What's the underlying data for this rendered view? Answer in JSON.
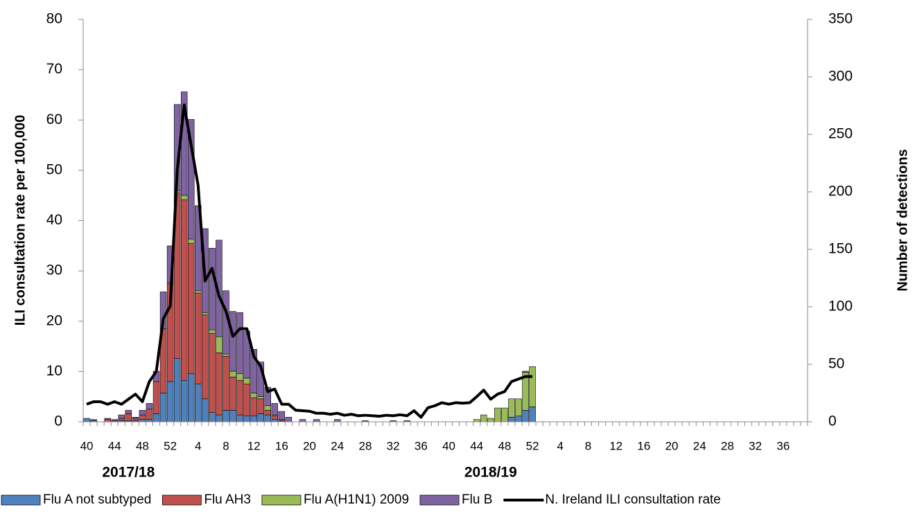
{
  "chart_data": {
    "type": "bar",
    "stacked": true,
    "ylabel": "ILI consultation rate per 100,000",
    "y2label": "Number of detections",
    "ylim": [
      0,
      80
    ],
    "yticks": [
      0,
      10,
      20,
      30,
      40,
      50,
      60,
      70,
      80
    ],
    "y2lim": [
      0,
      350
    ],
    "y2ticks": [
      0,
      50,
      100,
      150,
      200,
      250,
      300,
      350
    ],
    "annotations": [
      "2017/18",
      "2018/19"
    ],
    "legend": "bottom",
    "categories": [
      "40",
      null,
      null,
      null,
      "44",
      null,
      null,
      null,
      "48",
      null,
      null,
      null,
      "52",
      null,
      null,
      null,
      "4",
      null,
      null,
      null,
      "8",
      null,
      null,
      null,
      "12",
      null,
      null,
      null,
      "16",
      null,
      null,
      null,
      "20",
      null,
      null,
      null,
      "24",
      null,
      null,
      null,
      "28",
      null,
      null,
      null,
      "32",
      null,
      null,
      null,
      "36",
      null,
      null,
      null,
      "40",
      null,
      null,
      null,
      "44",
      null,
      null,
      null,
      "48",
      null,
      null,
      null,
      "52",
      null,
      null,
      null,
      "4",
      null,
      null,
      null,
      "8",
      null,
      null,
      null,
      "12",
      null,
      null,
      null,
      "16",
      null,
      null,
      null,
      "20",
      null,
      null,
      null,
      "24",
      null,
      null,
      null,
      "28",
      null,
      null,
      null,
      "32",
      null,
      null,
      null,
      "36",
      null,
      null,
      null
    ],
    "series": [
      {
        "name": "Flu A not subtyped",
        "color": "#4f81bd",
        "type": "bar",
        "axis": "y2",
        "values": [
          3,
          1,
          0,
          0,
          0,
          1,
          1,
          1,
          2,
          2,
          7,
          25,
          35,
          55,
          36,
          42,
          33,
          20,
          8,
          6,
          10,
          10,
          6,
          5,
          5,
          7,
          6,
          2,
          1,
          0,
          0,
          0,
          0,
          0,
          0,
          0,
          0,
          0,
          0,
          0,
          0,
          0,
          0,
          0,
          0,
          0,
          0,
          0,
          0,
          0,
          0,
          0,
          0,
          0,
          0,
          0,
          0,
          0,
          0,
          0,
          0,
          4,
          5,
          10,
          13,
          null,
          null,
          null,
          null,
          null,
          null,
          null,
          null,
          null,
          null,
          null,
          null,
          null,
          null,
          null,
          null,
          null,
          null,
          null,
          null,
          null,
          null,
          null,
          null,
          null,
          null,
          null,
          null,
          null,
          null,
          null,
          null,
          null,
          null,
          null,
          null,
          null,
          null,
          null
        ]
      },
      {
        "name": "Flu AH3",
        "color": "#c0504d",
        "type": "bar",
        "axis": "y2",
        "values": [
          0,
          0,
          0,
          2,
          1,
          2,
          6,
          2,
          4,
          9,
          28,
          56,
          85,
          144,
          157,
          113,
          79,
          73,
          69,
          54,
          47,
          29,
          30,
          28,
          16,
          13,
          4,
          3,
          1,
          0,
          0,
          0,
          0,
          0,
          0,
          0,
          0,
          0,
          0,
          0,
          0,
          0,
          0,
          0,
          0,
          0,
          0,
          0,
          0,
          0,
          0,
          0,
          0,
          0,
          0,
          0,
          0,
          0,
          0,
          0,
          0,
          0,
          0,
          0,
          0,
          null,
          null,
          null,
          null,
          null,
          null,
          null,
          null,
          null,
          null,
          null,
          null,
          null,
          null,
          null,
          null,
          null,
          null,
          null,
          null,
          null,
          null,
          null,
          null,
          null,
          null,
          null,
          null,
          null,
          null,
          null,
          null,
          null,
          null,
          null,
          null,
          null,
          null,
          null
        ]
      },
      {
        "name": "Flu A(H1N1) 2009",
        "color": "#9bbb59",
        "type": "bar",
        "axis": "y2",
        "values": [
          0,
          0,
          0,
          0,
          0,
          0,
          0,
          0,
          0,
          0,
          0,
          0,
          1,
          2,
          4,
          4,
          2,
          2,
          3,
          14,
          2,
          5,
          6,
          5,
          4,
          2,
          4,
          1,
          0,
          0,
          0,
          0,
          0,
          0,
          0,
          0,
          0,
          0,
          0,
          0,
          0,
          0,
          0,
          0,
          0,
          0,
          0,
          0,
          0,
          0,
          0,
          0,
          0,
          0,
          0,
          0,
          2,
          6,
          3,
          12,
          12,
          16,
          15,
          33,
          35,
          null,
          null,
          null,
          null,
          null,
          null,
          null,
          null,
          null,
          null,
          null,
          null,
          null,
          null,
          null,
          null,
          null,
          null,
          null,
          null,
          null,
          null,
          null,
          null,
          null,
          null,
          null,
          null,
          null,
          null,
          null,
          null,
          null,
          null,
          null,
          null,
          null,
          null,
          null
        ]
      },
      {
        "name": "Flu B",
        "color": "#8064a2",
        "type": "bar",
        "axis": "y2",
        "values": [
          0,
          1,
          0,
          1,
          1,
          3,
          3,
          1,
          4,
          5,
          9,
          32,
          32,
          75,
          90,
          104,
          74,
          73,
          71,
          84,
          55,
          52,
          53,
          41,
          38,
          30,
          16,
          10,
          7,
          4,
          0,
          2,
          0,
          2,
          0,
          0,
          2,
          0,
          0,
          0,
          1,
          0,
          0,
          0,
          1,
          0,
          1,
          0,
          0,
          0,
          0,
          0,
          0,
          0,
          0,
          0,
          0,
          0,
          0,
          0,
          0,
          0,
          0,
          1,
          0,
          null,
          null,
          null,
          null,
          null,
          null,
          null,
          null,
          null,
          null,
          null,
          null,
          null,
          null,
          null,
          null,
          null,
          null,
          null,
          null,
          null,
          null,
          null,
          null,
          null,
          null,
          null,
          null,
          null,
          null,
          null,
          null,
          null,
          null,
          null,
          null,
          null,
          null,
          null
        ]
      },
      {
        "name": "N. Ireland ILI consultation rate",
        "color": "#000000",
        "type": "line",
        "axis": "y",
        "values": [
          3.5,
          4,
          4,
          3.5,
          4,
          3.5,
          4.5,
          5.5,
          4,
          8,
          10,
          20.5,
          23,
          50,
          63,
          55,
          47,
          28,
          30.5,
          25,
          22,
          17,
          18.5,
          18.5,
          13,
          11,
          6,
          6.5,
          3.5,
          3.5,
          2.3,
          2.2,
          2.1,
          1.7,
          1.7,
          1.5,
          1.7,
          1.3,
          1.5,
          1.2,
          1.3,
          1.2,
          1.1,
          1.3,
          1.2,
          1.4,
          1.2,
          2.2,
          0.9,
          2.8,
          3.2,
          3.8,
          3.5,
          3.8,
          3.7,
          3.8,
          5,
          6.3,
          4.5,
          5.5,
          6,
          8,
          8.5,
          9,
          9,
          null,
          null,
          null,
          null,
          null,
          null,
          null,
          null,
          null,
          null,
          null,
          null,
          null,
          null,
          null,
          null,
          null,
          null,
          null,
          null,
          null,
          null,
          null,
          null,
          null,
          null,
          null,
          null,
          null,
          null,
          null,
          null,
          null,
          null,
          null,
          null,
          null,
          null,
          null
        ]
      }
    ]
  }
}
